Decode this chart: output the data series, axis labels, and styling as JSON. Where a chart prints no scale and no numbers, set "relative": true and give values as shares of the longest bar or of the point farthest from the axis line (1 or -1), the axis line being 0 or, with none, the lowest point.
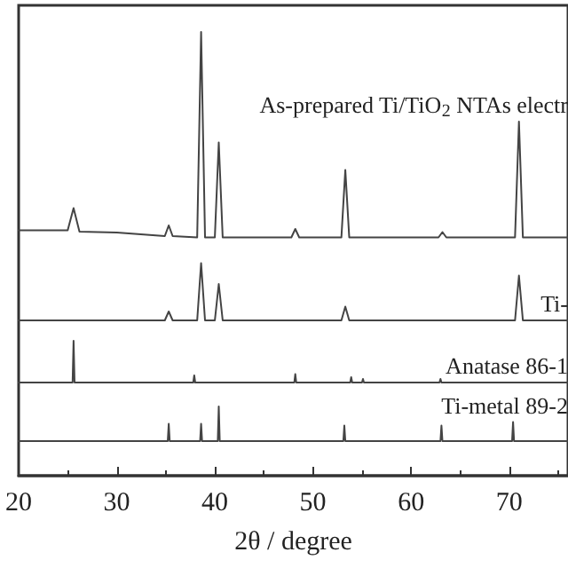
{
  "chart_data": {
    "type": "line",
    "relative": true,
    "xlabel": "2θ / degree",
    "xlim": [
      20,
      76
    ],
    "xticks": [
      20,
      30,
      40,
      50,
      60,
      70
    ],
    "legend": false,
    "grid": false,
    "marker": "none",
    "line_style": "solid",
    "series": [
      {
        "name": "As-prepared Ti/TiO$_{2}$ NTAs electr",
        "color": "#444444",
        "x": [
          20,
          25.0,
          25.6,
          26.2,
          30,
          34.9,
          35.3,
          35.7,
          38.2,
          38.6,
          39.0,
          40.0,
          40.4,
          40.8,
          47.8,
          48.2,
          48.6,
          52.9,
          53.3,
          53.7,
          62.8,
          63.2,
          63.6,
          70.6,
          71.0,
          71.4,
          76
        ],
        "values": [
          0.553,
          0.553,
          0.603,
          0.55,
          0.548,
          0.54,
          0.564,
          0.54,
          0.537,
          1,
          0.537,
          0.537,
          0.751,
          0.537,
          0.537,
          0.556,
          0.537,
          0.537,
          0.689,
          0.537,
          0.537,
          0.549,
          0.537,
          0.537,
          0.798,
          0.537,
          0.537
        ]
      },
      {
        "name": "Ti-",
        "color": "#444444",
        "x": [
          20,
          34.9,
          35.3,
          35.7,
          38.2,
          38.6,
          39.0,
          40.0,
          40.4,
          40.8,
          52.9,
          53.3,
          53.7,
          70.6,
          71.0,
          71.4,
          76
        ],
        "values": [
          0.35,
          0.35,
          0.37,
          0.35,
          0.35,
          0.479,
          0.35,
          0.35,
          0.432,
          0.35,
          0.35,
          0.381,
          0.35,
          0.35,
          0.451,
          0.35,
          0.35
        ]
      },
      {
        "name": "Anatase 86-1",
        "color": "#444444",
        "x": [
          20,
          25.5,
          25.6,
          25.7,
          37.8,
          37.9,
          38.0,
          48.1,
          48.2,
          48.3,
          53.8,
          53.9,
          54.0,
          55.0,
          55.1,
          55.2,
          62.9,
          63.0,
          63.1,
          76
        ],
        "values": [
          0.21,
          0.21,
          0.304,
          0.21,
          0.21,
          0.226,
          0.21,
          0.21,
          0.229,
          0.21,
          0.21,
          0.222,
          0.21,
          0.21,
          0.218,
          0.21,
          0.21,
          0.218,
          0.21,
          0.21
        ]
      },
      {
        "name": "Ti-metal 89-2",
        "color": "#444444",
        "x": [
          20,
          35.2,
          35.3,
          35.4,
          38.5,
          38.6,
          38.7,
          40.3,
          40.4,
          40.5,
          53.1,
          53.2,
          53.3,
          63.0,
          63.1,
          63.2,
          70.3,
          70.4,
          70.5,
          76
        ],
        "values": [
          0.078,
          0.078,
          0.117,
          0.078,
          0.078,
          0.117,
          0.078,
          0.078,
          0.156,
          0.078,
          0.078,
          0.113,
          0.078,
          0.078,
          0.113,
          0.078,
          0.078,
          0.121,
          0.078,
          0.078
        ]
      }
    ]
  }
}
